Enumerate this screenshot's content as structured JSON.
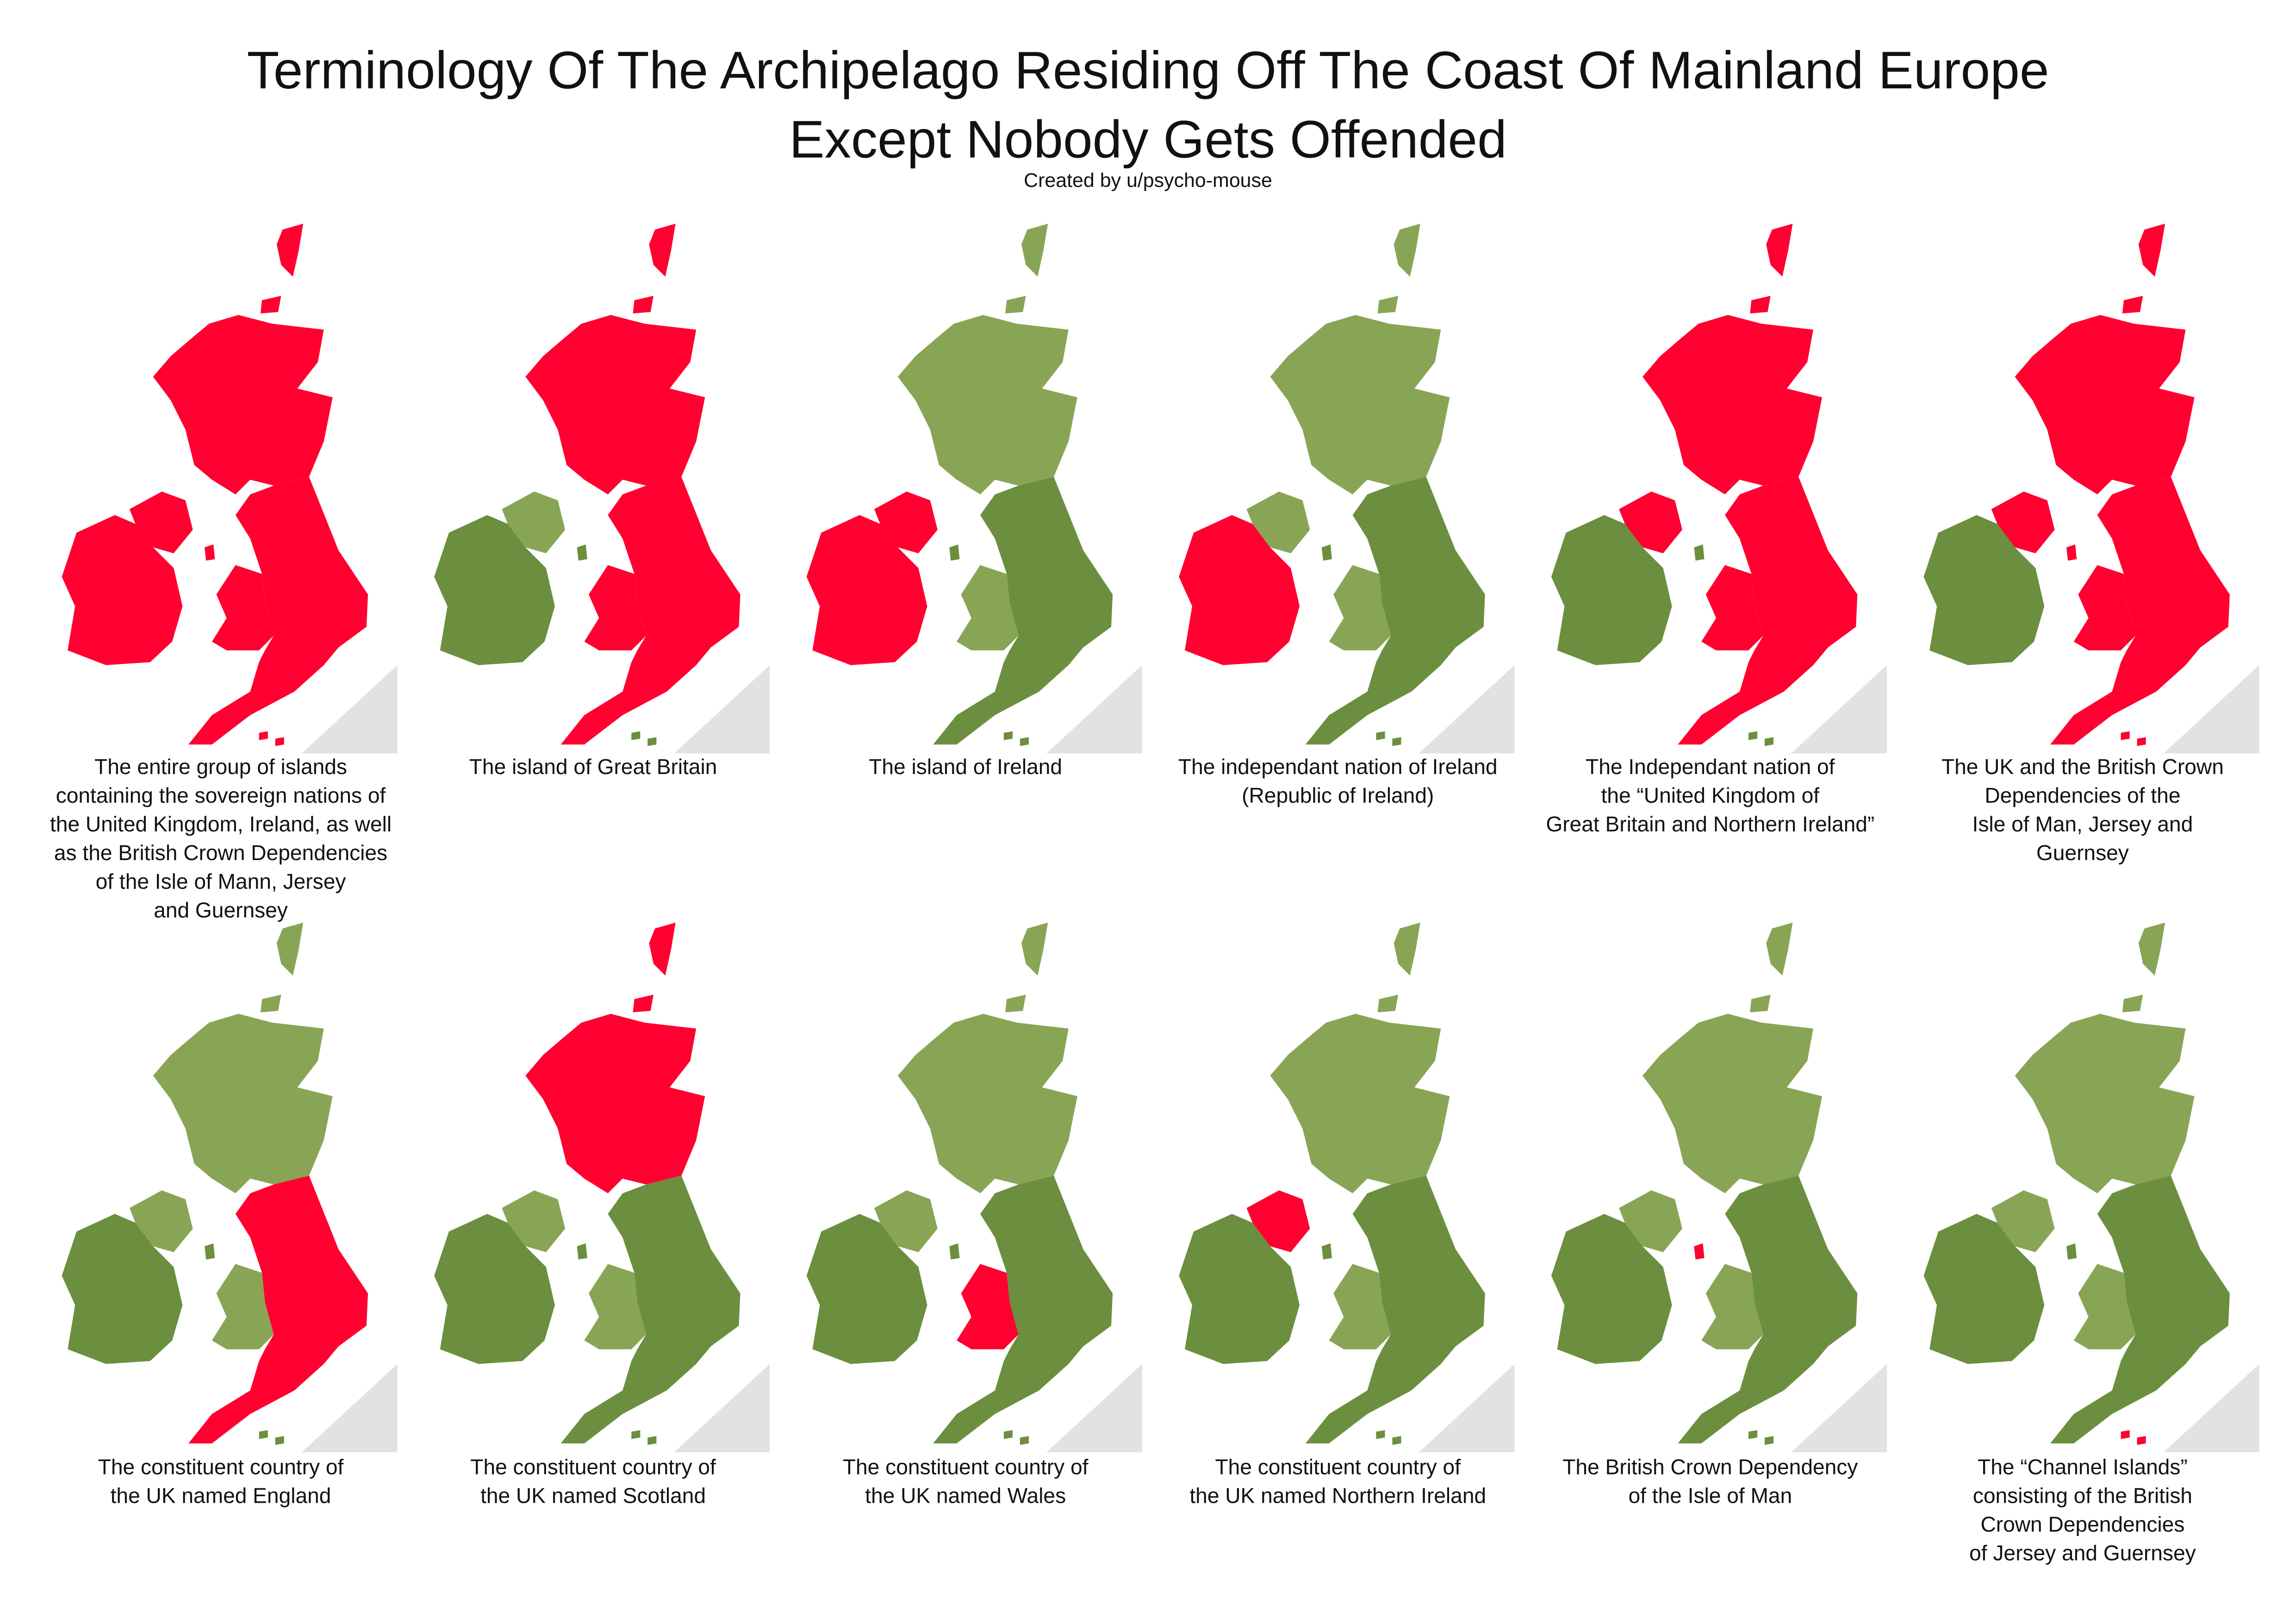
{
  "title": [
    "Terminology Of The Archipelago Residing Off The Coast Of Mainland Europe",
    "Except Nobody Gets Offended"
  ],
  "subtitle": "Created by u/psycho-mouse",
  "panels": [
    {
      "caption": [
        "The entire group of islands",
        "containing the sovereign nations of",
        "the United Kingdom, Ireland, as well",
        "as the British Crown Dependencies",
        "of the Isle of Mann, Jersey",
        "and Guernsey"
      ]
    },
    {
      "caption": [
        "The island of Great Britain"
      ]
    },
    {
      "caption": [
        "The island of Ireland"
      ]
    },
    {
      "caption": [
        "The independant nation of Ireland",
        "(Republic of Ireland)"
      ]
    },
    {
      "caption": [
        "The Independant nation of",
        "the “United Kingdom of",
        "Great Britain and Northern Ireland”"
      ]
    },
    {
      "caption": [
        "The UK and the British Crown",
        "Dependencies of the",
        "Isle of Man, Jersey and",
        "Guernsey"
      ]
    },
    {
      "caption": [
        "The constituent country of",
        "the UK named England"
      ]
    },
    {
      "caption": [
        "The constituent country of",
        "the UK named Scotland"
      ]
    },
    {
      "caption": [
        "The constituent country of",
        "the UK named Wales"
      ]
    },
    {
      "caption": [
        "The constituent country of",
        "the UK named Northern Ireland"
      ]
    },
    {
      "caption": [
        "The British Crown Dependency",
        "of the Isle of Man"
      ]
    },
    {
      "caption": [
        "The “Channel Islands”",
        "consisting of the British",
        "Crown Dependencies",
        "of Jersey and Guernsey"
      ]
    }
  ]
}
